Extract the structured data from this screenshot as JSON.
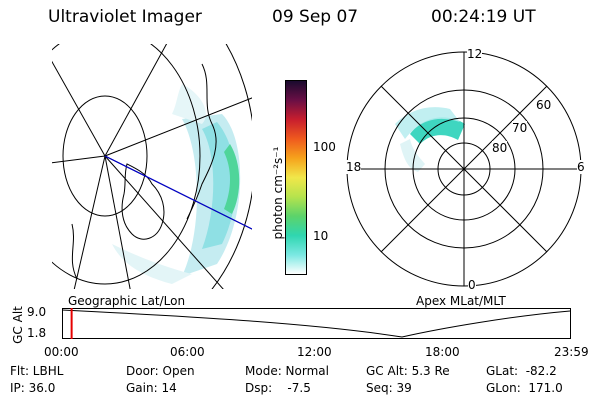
{
  "header": {
    "instrument": "Ultraviolet Imager",
    "date": "09 Sep 07",
    "time": "00:24:19 UT"
  },
  "colorbar": {
    "unit_label": "photon cm⁻²s⁻¹",
    "ticks": [
      "100",
      "10"
    ],
    "colors": [
      "#1a0a2e",
      "#6a0f45",
      "#c81e2e",
      "#ef5a1e",
      "#f6a31c",
      "#f1e74a",
      "#b6e34d",
      "#5cd36a",
      "#2fd6b0",
      "#7ae8e2",
      "#ffffff"
    ]
  },
  "geo_map": {
    "caption": "Geographic Lat/Lon"
  },
  "polar_plot": {
    "caption": "Apex MLat/MLT",
    "mlt_labels": {
      "top": "12",
      "left": "18",
      "right": "6",
      "bottom": "0"
    },
    "lat_labels": [
      "60",
      "70",
      "80"
    ]
  },
  "timeline": {
    "ylabel": "GC Alt",
    "yticks": [
      "9.0",
      "1.8"
    ],
    "xticks": [
      "00:00",
      "06:00",
      "12:00",
      "18:00",
      "23:59"
    ],
    "current_fraction": 0.017
  },
  "status": {
    "filter": "Flt: LBHL",
    "ip": "IP: 36.0",
    "door": "Door: Open",
    "gain": "Gain: 14",
    "mode": "Mode: Normal",
    "dsp": "Dsp:    -7.5",
    "gc_alt": "GC Alt: 5.3 Re",
    "seq": "Seq: 39",
    "glat": "GLat:  -82.2",
    "glon": "GLon:  171.0"
  }
}
